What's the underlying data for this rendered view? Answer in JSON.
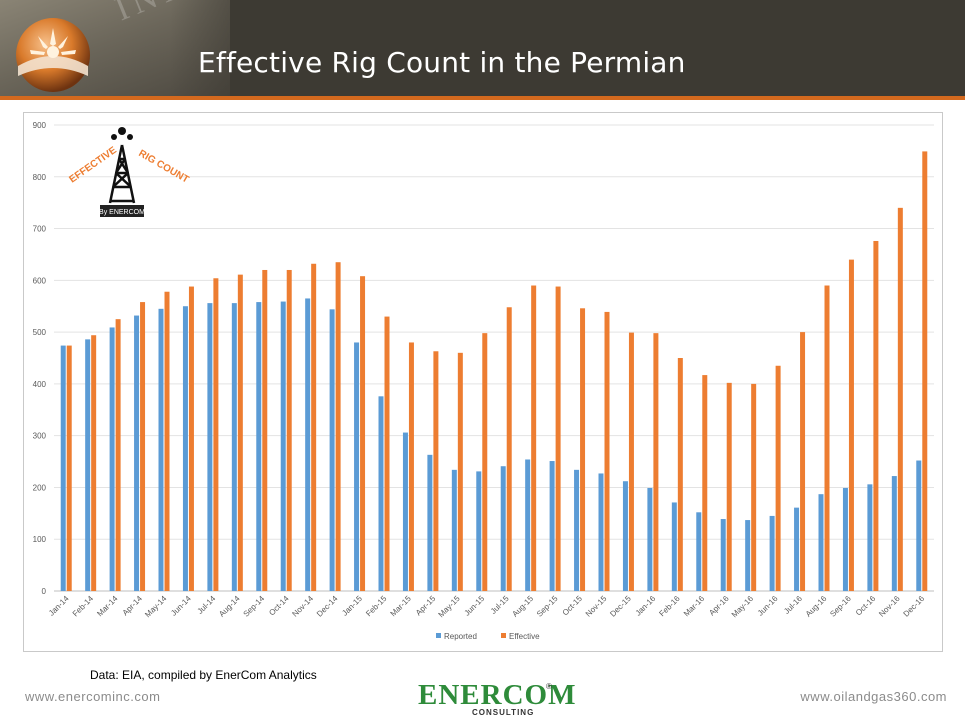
{
  "slide": {
    "title": "Effective Rig Count in the Permian",
    "watermark": "INDUSTRY",
    "source_note": "Data: EIA, compiled by EnerCom Analytics",
    "footer_left": "www.enercominc.com",
    "footer_right": "www.oilandgas360.com",
    "footer_logo": "ENERCOM",
    "footer_logo_sub": "CONSULTING",
    "footer_logo_reg": "®"
  },
  "badge": {
    "word_left": "EFFECTIVE",
    "word_right": "RIG COUNT",
    "byline": "By ENERCOM"
  },
  "colors": {
    "reported": "#5b9bd5",
    "effective": "#ed7d31",
    "accent": "#d4691e",
    "header": "#3d3a33"
  },
  "chart_data": {
    "type": "bar",
    "title": "",
    "xlabel": "",
    "ylabel": "",
    "ylim": [
      0,
      900
    ],
    "yticks": [
      0,
      100,
      200,
      300,
      400,
      500,
      600,
      700,
      800,
      900
    ],
    "grid": true,
    "legend_position": "bottom",
    "categories": [
      "Jan-14",
      "Feb-14",
      "Mar-14",
      "Apr-14",
      "May-14",
      "Jun-14",
      "Jul-14",
      "Aug-14",
      "Sep-14",
      "Oct-14",
      "Nov-14",
      "Dec-14",
      "Jan-15",
      "Feb-15",
      "Mar-15",
      "Apr-15",
      "May-15",
      "Jun-15",
      "Jul-15",
      "Aug-15",
      "Sep-15",
      "Oct-15",
      "Nov-15",
      "Dec-15",
      "Jan-16",
      "Feb-16",
      "Mar-16",
      "Apr-16",
      "May-16",
      "Jun-16",
      "Jul-16",
      "Aug-16",
      "Sep-16",
      "Oct-16",
      "Nov-16",
      "Dec-16"
    ],
    "series": [
      {
        "name": "Reported",
        "color": "#5b9bd5",
        "values": [
          474,
          486,
          509,
          532,
          545,
          550,
          556,
          556,
          558,
          559,
          565,
          544,
          480,
          376,
          306,
          263,
          234,
          231,
          241,
          254,
          251,
          234,
          227,
          212,
          199,
          171,
          152,
          139,
          137,
          145,
          161,
          187,
          199,
          206,
          222,
          252
        ]
      },
      {
        "name": "Effective",
        "color": "#ed7d31",
        "values": [
          474,
          494,
          525,
          558,
          578,
          588,
          604,
          611,
          620,
          620,
          632,
          635,
          608,
          530,
          480,
          463,
          460,
          498,
          548,
          590,
          588,
          546,
          539,
          499,
          498,
          450,
          417,
          402,
          400,
          435,
          500,
          590,
          640,
          676,
          740,
          849
        ]
      }
    ]
  }
}
